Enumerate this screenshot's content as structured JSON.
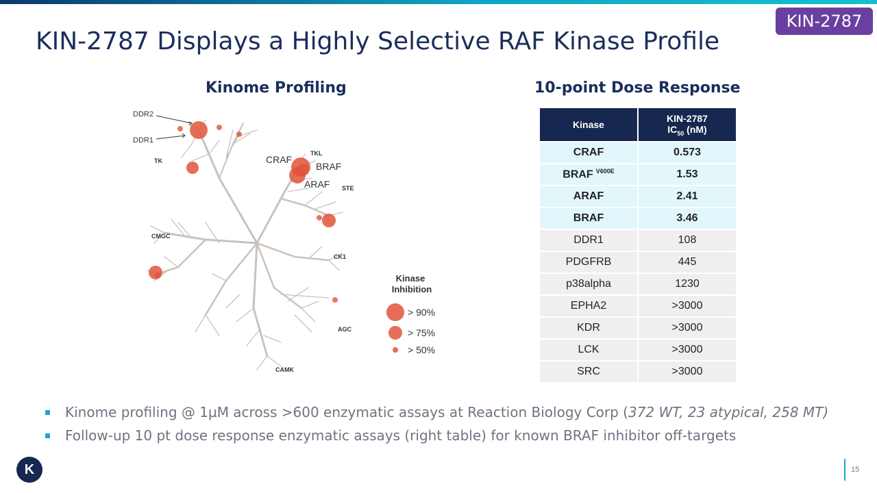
{
  "badge": "KIN-2787",
  "title": "KIN-2787 Displays a Highly Selective RAF Kinase Profile",
  "kinome": {
    "heading": "Kinome Profiling",
    "groups": {
      "tk": "TK",
      "tkl": "TKL",
      "ste": "STE",
      "cmgc": "CMGC",
      "ck1": "CK1",
      "agc": "AGC",
      "camk": "CAMK"
    },
    "hits": {
      "ddr2": "DDR2",
      "ddr1": "DDR1",
      "craf": "CRAF",
      "braf": "BRAF",
      "araf": "ARAF"
    },
    "legend": {
      "title_line1": "Kinase",
      "title_line2": "Inhibition",
      "items": [
        "> 90%",
        "> 75%",
        "> 50%"
      ]
    },
    "colors": {
      "tree": "#c9c2bc",
      "dot": "#e0553b"
    }
  },
  "dose": {
    "heading": "10-point Dose Response",
    "col1": "Kinase",
    "col2_line1": "KIN-2787",
    "col2_ic": "IC",
    "col2_sub": "50",
    "col2_unit": " (nM)",
    "rows": [
      {
        "kinase": "CRAF",
        "sup": "",
        "ic50": "0.573"
      },
      {
        "kinase": "BRAF",
        "sup": "V600E",
        "ic50": "1.53"
      },
      {
        "kinase": "ARAF",
        "sup": "",
        "ic50": "2.41"
      },
      {
        "kinase": "BRAF",
        "sup": "",
        "ic50": "3.46"
      },
      {
        "kinase": "DDR1",
        "sup": "",
        "ic50": "108"
      },
      {
        "kinase": "PDGFRB",
        "sup": "",
        "ic50": "445"
      },
      {
        "kinase": "p38alpha",
        "sup": "",
        "ic50": "1230"
      },
      {
        "kinase": "EPHA2",
        "sup": "",
        "ic50": ">3000"
      },
      {
        "kinase": "KDR",
        "sup": "",
        "ic50": ">3000"
      },
      {
        "kinase": "LCK",
        "sup": "",
        "ic50": ">3000"
      },
      {
        "kinase": "SRC",
        "sup": "",
        "ic50": ">3000"
      }
    ]
  },
  "bullets": {
    "b1_main": "Kinome profiling @ 1µM across >600 enzymatic assays at Reaction Biology Corp (",
    "b1_italic": "372 WT, 23 atypical, 258 MT)",
    "b2": "Follow-up 10 pt dose response enzymatic assays (right table) for known BRAF inhibitor off-targets"
  },
  "logo": "K",
  "page": "15"
}
